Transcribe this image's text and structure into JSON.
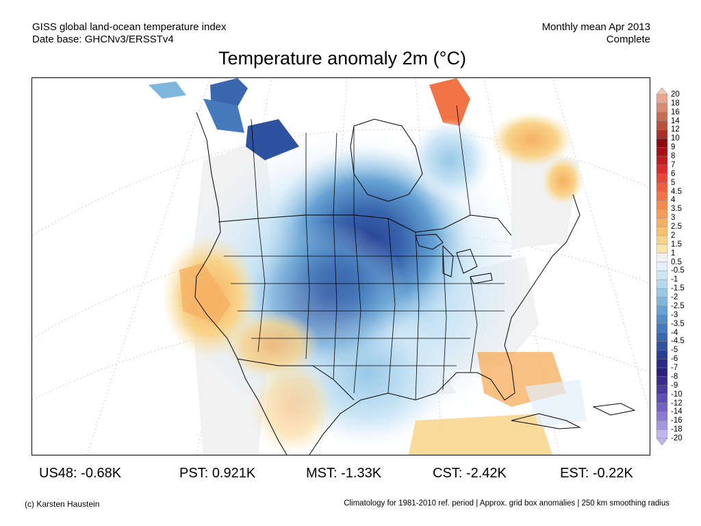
{
  "header": {
    "source_line1": "GISS global land-ocean temperature index",
    "source_line2": "Date base: GHCNv3/ERSSTv4",
    "period_line1": "Monthly mean Apr 2013",
    "period_line2": "Complete"
  },
  "title": "Temperature anomaly 2m (°C)",
  "colorbar": {
    "labels": [
      "20",
      "18",
      "16",
      "14",
      "12",
      "10",
      "9",
      "8",
      "7",
      "6",
      "5",
      "4.5",
      "4",
      "3.5",
      "3",
      "2.5",
      "2",
      "1.5",
      "1",
      "0.5",
      "-0.5",
      "-1",
      "-1.5",
      "-2",
      "-2.5",
      "-3",
      "-3.5",
      "-4",
      "-4.5",
      "-5",
      "-6",
      "-7",
      "-8",
      "-9",
      "-10",
      "-12",
      "-14",
      "-16",
      "-18",
      "-20"
    ],
    "colors": [
      "#f5c7b4",
      "#e9a78f",
      "#d98b72",
      "#c86d55",
      "#b9513c",
      "#a8312a",
      "#8c0a10",
      "#a80f16",
      "#c21a1f",
      "#dd2a2a",
      "#e8463a",
      "#ee5e3e",
      "#f27446",
      "#f48a4e",
      "#f59d58",
      "#f6b063",
      "#f7c272",
      "#f8d38a",
      "#fae3aa",
      "#f1f1f1",
      "#e3f0fb",
      "#cde6f6",
      "#b3d8ef",
      "#98c8e6",
      "#7eb6dd",
      "#66a2d3",
      "#548ec8",
      "#457abc",
      "#3966ad",
      "#2f52a0",
      "#283f92",
      "#262c85",
      "#2a1f7d",
      "#3a2a8d",
      "#4b3aa0",
      "#5d4fb5",
      "#7363c6",
      "#8a7ad4",
      "#a496e1",
      "#c0b5ec"
    ]
  },
  "map": {
    "area_averages": [
      {
        "region": "US48",
        "value": "-0.68K"
      },
      {
        "region": "PST",
        "value": "0.921K"
      },
      {
        "region": "MST",
        "value": "-1.33K"
      },
      {
        "region": "CST",
        "value": "-2.42K"
      },
      {
        "region": "EST",
        "value": "-0.22K"
      }
    ]
  },
  "footer": {
    "credit": "(c) Karsten Haustein",
    "note": "Climatology for 1981-2010 ref. period | Approx. grid box anomalies | 250 km smoothing radius"
  }
}
